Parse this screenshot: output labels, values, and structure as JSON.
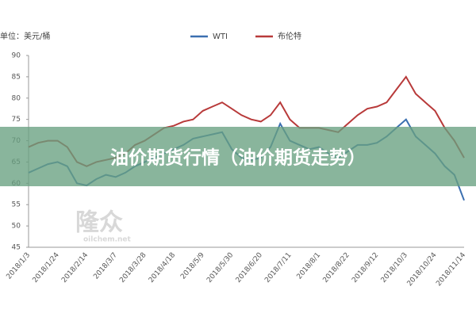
{
  "chart_data": {
    "type": "line",
    "unit_label": "单位：美元/桶",
    "banner": "油价期货行情（油价期货走势）",
    "watermark": [
      "隆众",
      "oilchem.net"
    ],
    "categories": [
      "2018/1/3",
      null,
      null,
      "2018/1/24",
      null,
      null,
      "2018/2/14",
      null,
      null,
      "2018/3/7",
      null,
      null,
      "2018/3/28",
      null,
      null,
      "2018/4/18",
      null,
      null,
      "2018/5/9",
      null,
      null,
      "2018/5/30",
      null,
      null,
      "2018/6/20",
      null,
      null,
      "2018/7/11",
      null,
      null,
      "2018/8/1",
      null,
      null,
      "2018/8/22",
      null,
      null,
      "2018/9/12",
      null,
      null,
      "2018/10/3",
      null,
      null,
      "2018/10/24",
      null,
      null,
      "2018/11/14"
    ],
    "series": [
      {
        "name": "WTI",
        "color": "#3b6fb0",
        "values": [
          62.5,
          63.5,
          64.5,
          65,
          64,
          60,
          59.5,
          61,
          62,
          61.5,
          62.5,
          64,
          65,
          66,
          67,
          68,
          69,
          70.5,
          71,
          71.5,
          72,
          68,
          66,
          65.5,
          66,
          68.5,
          74,
          70,
          69,
          68,
          68.5,
          67,
          66,
          67.5,
          69,
          69,
          69.5,
          71,
          73,
          75,
          71,
          69,
          67,
          64,
          62,
          56
        ]
      },
      {
        "name": "布伦特",
        "color": "#b83a3a",
        "values": [
          68.5,
          69.5,
          70,
          70,
          68.5,
          65,
          64,
          65,
          65.5,
          66,
          67,
          69,
          70,
          71.5,
          73,
          73.5,
          74.5,
          75,
          77,
          78,
          79,
          77.5,
          76,
          75,
          74.5,
          76,
          79,
          75,
          73,
          73,
          73,
          72.5,
          72,
          74,
          76,
          77.5,
          78,
          79,
          82,
          85,
          81,
          79,
          77,
          73,
          70,
          66
        ]
      }
    ],
    "ylim": [
      45,
      90
    ],
    "yticks": [
      45,
      50,
      55,
      60,
      65,
      70,
      75,
      80,
      85,
      90
    ]
  }
}
